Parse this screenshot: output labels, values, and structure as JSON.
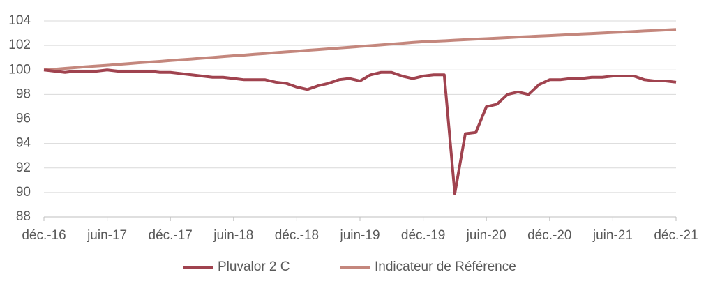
{
  "chart_data": {
    "type": "line",
    "categories": [
      "déc.-16",
      null,
      null,
      null,
      null,
      null,
      "juin-17",
      null,
      null,
      null,
      null,
      null,
      "déc.-17",
      null,
      null,
      null,
      null,
      null,
      "juin-18",
      null,
      null,
      null,
      null,
      null,
      "déc.-18",
      null,
      null,
      null,
      null,
      null,
      "juin-19",
      null,
      null,
      null,
      null,
      null,
      "déc.-19",
      null,
      null,
      null,
      null,
      null,
      "juin-20",
      null,
      null,
      null,
      null,
      null,
      "déc.-20",
      null,
      null,
      null,
      null,
      null,
      "juin-21",
      null,
      null,
      null,
      null,
      null,
      "déc.-21"
    ],
    "series": [
      {
        "name": "Pluvalor 2 C",
        "color": "#a0434f",
        "values": [
          100.0,
          99.9,
          99.8,
          99.9,
          99.9,
          99.9,
          100.0,
          99.9,
          99.9,
          99.9,
          99.9,
          99.8,
          99.8,
          99.7,
          99.6,
          99.5,
          99.4,
          99.4,
          99.3,
          99.2,
          99.2,
          99.2,
          99.0,
          98.9,
          98.6,
          98.4,
          98.7,
          98.9,
          99.2,
          99.3,
          99.1,
          99.6,
          99.8,
          99.8,
          99.5,
          99.3,
          99.5,
          99.6,
          99.6,
          89.9,
          94.8,
          94.9,
          97.0,
          97.2,
          98.0,
          98.2,
          98.0,
          98.8,
          99.2,
          99.2,
          99.3,
          99.3,
          99.4,
          99.4,
          99.5,
          99.5,
          99.5,
          99.2,
          99.1,
          99.1,
          99.0
        ]
      },
      {
        "name": "Indicateur de Référence",
        "color": "#c4877d",
        "values": [
          100.0,
          100.06,
          100.13,
          100.19,
          100.26,
          100.32,
          100.38,
          100.45,
          100.51,
          100.58,
          100.64,
          100.7,
          100.77,
          100.83,
          100.89,
          100.96,
          101.02,
          101.09,
          101.15,
          101.21,
          101.28,
          101.34,
          101.41,
          101.47,
          101.53,
          101.6,
          101.66,
          101.72,
          101.79,
          101.85,
          101.92,
          101.98,
          102.04,
          102.11,
          102.17,
          102.24,
          102.3,
          102.34,
          102.38,
          102.43,
          102.47,
          102.51,
          102.55,
          102.59,
          102.63,
          102.68,
          102.72,
          102.76,
          102.8,
          102.84,
          102.88,
          102.93,
          102.97,
          103.01,
          103.05,
          103.09,
          103.13,
          103.18,
          103.22,
          103.26,
          103.3
        ]
      }
    ],
    "ylim": [
      88,
      104
    ],
    "yticks": [
      88,
      90,
      92,
      94,
      96,
      98,
      100,
      102,
      104
    ],
    "grid": true,
    "legend": "bottom"
  }
}
